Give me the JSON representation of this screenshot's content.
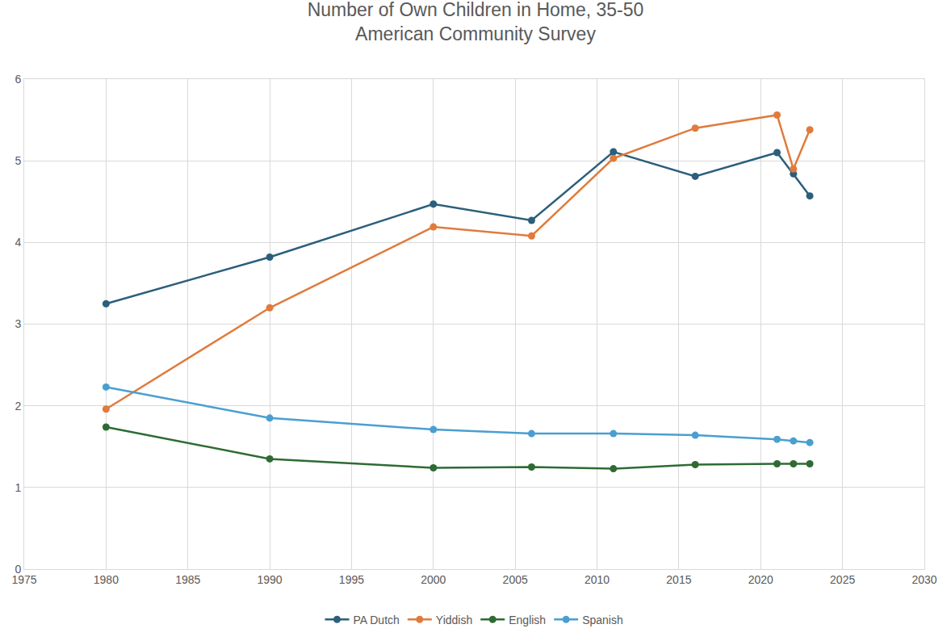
{
  "chart_data": {
    "type": "line",
    "title": "Number of Own Children in Home, 35-50",
    "subtitle": "American Community Survey",
    "x": [
      1980,
      1990,
      2000,
      2006,
      2011,
      2016,
      2021,
      2022,
      2023
    ],
    "series": [
      {
        "name": "PA Dutch",
        "color": "#2b5f7c",
        "values": [
          3.25,
          3.82,
          4.47,
          4.27,
          5.11,
          4.81,
          5.1,
          4.84,
          4.57
        ]
      },
      {
        "name": "Yiddish",
        "color": "#e07b3c",
        "values": [
          1.96,
          3.2,
          4.19,
          4.08,
          5.03,
          5.4,
          5.56,
          4.9,
          5.38
        ]
      },
      {
        "name": "English",
        "color": "#2e6b34",
        "values": [
          1.74,
          1.35,
          1.24,
          1.25,
          1.23,
          1.28,
          1.29,
          1.29,
          1.29
        ]
      },
      {
        "name": "Spanish",
        "color": "#4a9fd0",
        "values": [
          2.23,
          1.85,
          1.71,
          1.66,
          1.66,
          1.64,
          1.59,
          1.57,
          1.55
        ]
      }
    ],
    "xlim": [
      1975,
      2030
    ],
    "xticks": [
      1975,
      1980,
      1985,
      1990,
      1995,
      2000,
      2005,
      2010,
      2015,
      2020,
      2025,
      2030
    ],
    "ylim": [
      0,
      6
    ],
    "yticks": [
      0,
      1,
      2,
      3,
      4,
      5,
      6
    ],
    "grid": true,
    "legend": "bottom",
    "marker": "circle",
    "line_style": "solid"
  }
}
